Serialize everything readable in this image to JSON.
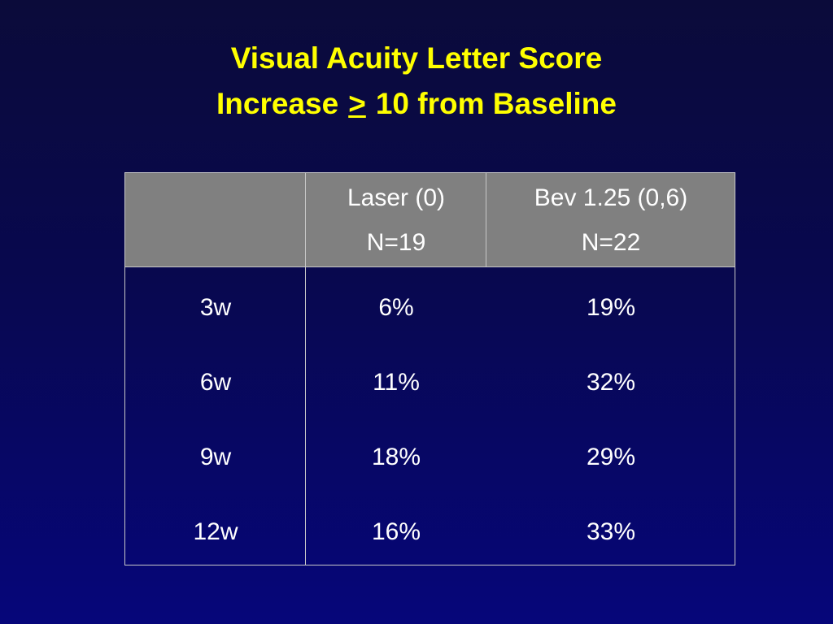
{
  "title": {
    "line1": "Visual Acuity Letter Score",
    "line2_start": "Increase",
    "line2_symbol": ">",
    "line2_end": "10 from Baseline"
  },
  "table": {
    "header": [
      [
        "Laser (0)",
        "N=19"
      ],
      [
        "Bev 1.25 (0,6)",
        "N=22"
      ]
    ],
    "rows": [
      [
        "3w",
        "6%",
        "19%"
      ],
      [
        "6w",
        "11%",
        "32%"
      ],
      [
        "9w",
        "18%",
        "29%"
      ],
      [
        "12w",
        "16%",
        "33%"
      ]
    ]
  }
}
